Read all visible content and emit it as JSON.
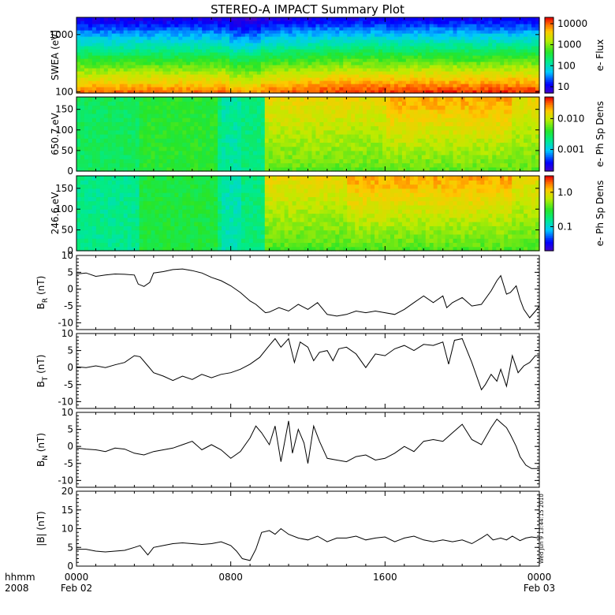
{
  "title": "STEREO-A IMPACT Summary Plot",
  "stamp": "Wed Jun  9 13:44:15 2010",
  "xaxis": {
    "corner_label_1": "hhmm",
    "corner_label_2": "2008",
    "ticks": [
      {
        "hour": 0,
        "label": "0000",
        "sub": "Feb 02"
      },
      {
        "hour": 8,
        "label": "0800",
        "sub": ""
      },
      {
        "hour": 16,
        "label": "1600",
        "sub": ""
      },
      {
        "hour": 24,
        "label": "0000",
        "sub": "Feb 03"
      }
    ],
    "range_hours": [
      0,
      24
    ]
  },
  "colors": {
    "line": "#000000",
    "frame": "#000000"
  },
  "chart_data": [
    {
      "type": "heatmap",
      "ylabel": "SWEA (eV)",
      "yscale": "log",
      "ylim": [
        95,
        2000
      ],
      "yticks": [
        {
          "v": 100,
          "label": "100"
        },
        {
          "v": 1000,
          "label": "1000"
        }
      ],
      "colorbar": {
        "label": "e- Flux",
        "scale": "log",
        "range": [
          5,
          20000
        ],
        "ticks": [
          {
            "v": 10,
            "label": "10"
          },
          {
            "v": 100,
            "label": "100"
          },
          {
            "v": 1000,
            "label": "1000"
          },
          {
            "v": 10000,
            "label": "10000"
          }
        ]
      },
      "description_profile": "flux decreases with energy; spectrum hardens after ~10:00"
    },
    {
      "type": "heatmap",
      "ylabel": "650.7 eV",
      "ylim": [
        0,
        180
      ],
      "yticks": [
        {
          "v": 0,
          "label": "0"
        },
        {
          "v": 50,
          "label": "50"
        },
        {
          "v": 100,
          "label": "100"
        },
        {
          "v": 150,
          "label": "150"
        }
      ],
      "colorbar": {
        "label": "e- Ph Sp Dens",
        "scale": "log",
        "range": [
          0.0002,
          0.05
        ],
        "ticks": [
          {
            "v": 0.001,
            "label": "0.001"
          },
          {
            "v": 0.01,
            "label": "0.010"
          }
        ]
      }
    },
    {
      "type": "heatmap",
      "ylabel": "246.6 eV",
      "ylim": [
        0,
        180
      ],
      "yticks": [
        {
          "v": 0,
          "label": "0"
        },
        {
          "v": 50,
          "label": "50"
        },
        {
          "v": 100,
          "label": "100"
        },
        {
          "v": 150,
          "label": "150"
        }
      ],
      "colorbar": {
        "label": "e- Ph Sp Dens",
        "scale": "log",
        "range": [
          0.02,
          3.0
        ],
        "ticks": [
          {
            "v": 0.1,
            "label": "0.1"
          },
          {
            "v": 1.0,
            "label": "1.0"
          }
        ]
      }
    },
    {
      "type": "line",
      "ylabel_main": "B",
      "ylabel_sub": "R",
      "ylabel_unit": " (nT)",
      "ylim": [
        -12,
        10
      ],
      "yticks": [
        {
          "v": 10,
          "label": "10"
        },
        {
          "v": 5,
          "label": "5"
        },
        {
          "v": 0,
          "label": "0"
        },
        {
          "v": -5,
          "label": "-5"
        },
        {
          "v": -10,
          "label": "-10"
        }
      ],
      "x": [
        0,
        0.5,
        1,
        1.5,
        2,
        2.5,
        3,
        3.2,
        3.5,
        3.8,
        4,
        4.5,
        5,
        5.5,
        6,
        6.5,
        7,
        7.5,
        8,
        8.5,
        9,
        9.3,
        9.6,
        9.8,
        10,
        10.5,
        11,
        11.5,
        12,
        12.5,
        13,
        13.5,
        14,
        14.5,
        15,
        15.5,
        16,
        16.5,
        17,
        17.5,
        18,
        18.5,
        19,
        19.2,
        19.5,
        20,
        20.5,
        21,
        21.5,
        21.8,
        22,
        22.3,
        22.5,
        22.8,
        23,
        23.2,
        23.5,
        23.8,
        24
      ],
      "values": [
        4.5,
        4.8,
        3.8,
        4.2,
        4.5,
        4.4,
        4.2,
        1.5,
        0.8,
        2.0,
        4.8,
        5.2,
        5.8,
        6.0,
        5.5,
        4.8,
        3.5,
        2.5,
        1.0,
        -1.0,
        -3.5,
        -4.5,
        -6.0,
        -7.0,
        -6.8,
        -5.5,
        -6.5,
        -4.5,
        -6.0,
        -4.0,
        -7.5,
        -8.0,
        -7.5,
        -6.5,
        -7.0,
        -6.5,
        -7.0,
        -7.5,
        -6.0,
        -4.0,
        -2.0,
        -4.0,
        -2.0,
        -5.5,
        -4.0,
        -2.5,
        -5.0,
        -4.5,
        -0.5,
        2.5,
        4.0,
        -1.5,
        -1.0,
        1.0,
        -3.0,
        -6.0,
        -8.5,
        -6.5,
        -5.0
      ]
    },
    {
      "type": "line",
      "ylabel_main": "B",
      "ylabel_sub": "T",
      "ylabel_unit": " (nT)",
      "ylim": [
        -12,
        10
      ],
      "yticks": [
        {
          "v": 10,
          "label": "10"
        },
        {
          "v": 5,
          "label": "5"
        },
        {
          "v": 0,
          "label": "0"
        },
        {
          "v": -5,
          "label": "-5"
        },
        {
          "v": -10,
          "label": "-10"
        }
      ],
      "x": [
        0,
        0.5,
        1,
        1.5,
        2,
        2.5,
        3,
        3.3,
        3.7,
        4,
        4.5,
        5,
        5.5,
        6,
        6.5,
        7,
        7.5,
        8,
        8.5,
        9,
        9.5,
        10,
        10.3,
        10.6,
        11,
        11.3,
        11.6,
        12,
        12.3,
        12.6,
        13,
        13.3,
        13.6,
        14,
        14.5,
        15,
        15.5,
        16,
        16.5,
        17,
        17.5,
        18,
        18.5,
        19,
        19.3,
        19.6,
        20,
        20.5,
        21,
        21.2,
        21.5,
        21.8,
        22,
        22.3,
        22.6,
        22.9,
        23.2,
        23.5,
        23.8,
        24
      ],
      "values": [
        0.2,
        0.0,
        0.5,
        0.0,
        0.8,
        1.5,
        3.5,
        3.2,
        0.5,
        -1.5,
        -2.5,
        -3.8,
        -2.5,
        -3.5,
        -2.0,
        -3.0,
        -2.0,
        -1.5,
        -0.5,
        1.0,
        3.0,
        6.5,
        8.5,
        6.0,
        8.5,
        1.5,
        7.5,
        6.0,
        2.0,
        4.5,
        5.0,
        2.0,
        5.5,
        6.0,
        4.0,
        0.0,
        4.0,
        3.5,
        5.5,
        6.5,
        5.0,
        6.8,
        6.5,
        7.5,
        1.0,
        8.0,
        8.5,
        1.5,
        -6.5,
        -5.0,
        -2.0,
        -4.0,
        -0.5,
        -5.5,
        3.5,
        -1.5,
        0.5,
        1.5,
        3.5,
        3.5
      ]
    },
    {
      "type": "line",
      "ylabel_main": "B",
      "ylabel_sub": "N",
      "ylabel_unit": " (nT)",
      "ylim": [
        -12,
        10
      ],
      "yticks": [
        {
          "v": 10,
          "label": "10"
        },
        {
          "v": 5,
          "label": "5"
        },
        {
          "v": 0,
          "label": "0"
        },
        {
          "v": -5,
          "label": "-5"
        },
        {
          "v": -10,
          "label": "-10"
        }
      ],
      "x": [
        0,
        0.5,
        1,
        1.5,
        2,
        2.5,
        3,
        3.5,
        4,
        4.5,
        5,
        5.5,
        6,
        6.5,
        7,
        7.5,
        8,
        8.5,
        9,
        9.3,
        9.6,
        10,
        10.3,
        10.6,
        11,
        11.2,
        11.5,
        11.8,
        12,
        12.3,
        12.6,
        13,
        13.5,
        14,
        14.5,
        15,
        15.5,
        16,
        16.5,
        17,
        17.5,
        18,
        18.5,
        19,
        19.5,
        20,
        20.5,
        21,
        21.5,
        21.8,
        22,
        22.3,
        22.5,
        22.8,
        23,
        23.3,
        23.6,
        24
      ],
      "values": [
        -0.5,
        -0.8,
        -1.0,
        -1.5,
        -0.5,
        -0.8,
        -2.0,
        -2.5,
        -1.5,
        -1.0,
        -0.5,
        0.5,
        1.5,
        -1.0,
        0.5,
        -1.0,
        -3.5,
        -1.5,
        2.5,
        6.0,
        4.0,
        0.5,
        6.0,
        -4.5,
        7.5,
        -2.0,
        5.0,
        1.0,
        -5.0,
        6.0,
        1.5,
        -3.5,
        -4.0,
        -4.5,
        -3.0,
        -2.5,
        -4.0,
        -3.5,
        -2.0,
        0.0,
        -1.5,
        1.5,
        2.0,
        1.5,
        4.0,
        6.5,
        2.0,
        0.5,
        5.5,
        8.0,
        7.0,
        5.5,
        3.5,
        0.0,
        -3.0,
        -5.5,
        -6.5,
        -6.5
      ]
    },
    {
      "type": "line",
      "ylabel_main": "|B| (nT)",
      "ylim": [
        0,
        20
      ],
      "yticks": [
        {
          "v": 0,
          "label": "0"
        },
        {
          "v": 5,
          "label": "5"
        },
        {
          "v": 10,
          "label": "10"
        },
        {
          "v": 15,
          "label": "15"
        },
        {
          "v": 20,
          "label": "20"
        }
      ],
      "x": [
        0,
        0.5,
        1,
        1.5,
        2,
        2.5,
        3,
        3.3,
        3.7,
        4,
        4.5,
        5,
        5.5,
        6,
        6.5,
        7,
        7.5,
        8,
        8.3,
        8.6,
        9,
        9.3,
        9.6,
        10,
        10.3,
        10.6,
        11,
        11.5,
        12,
        12.5,
        13,
        13.5,
        14,
        14.5,
        15,
        15.5,
        16,
        16.5,
        17,
        17.5,
        18,
        18.5,
        19,
        19.5,
        20,
        20.5,
        21,
        21.3,
        21.6,
        22,
        22.3,
        22.6,
        23,
        23.3,
        23.6,
        24
      ],
      "values": [
        4.5,
        4.5,
        4.0,
        3.8,
        4.0,
        4.2,
        5.0,
        5.5,
        3.0,
        5.0,
        5.5,
        6.0,
        6.2,
        6.0,
        5.8,
        6.0,
        6.5,
        5.5,
        4.0,
        2.0,
        1.5,
        4.5,
        9.0,
        9.5,
        8.5,
        10.0,
        8.5,
        7.5,
        7.0,
        8.0,
        6.5,
        7.5,
        7.5,
        8.0,
        7.0,
        7.5,
        7.8,
        6.5,
        7.5,
        8.0,
        7.0,
        6.5,
        7.0,
        6.5,
        7.0,
        6.0,
        7.5,
        8.5,
        7.0,
        7.5,
        7.0,
        8.0,
        6.8,
        7.5,
        7.8,
        7.5
      ]
    }
  ]
}
